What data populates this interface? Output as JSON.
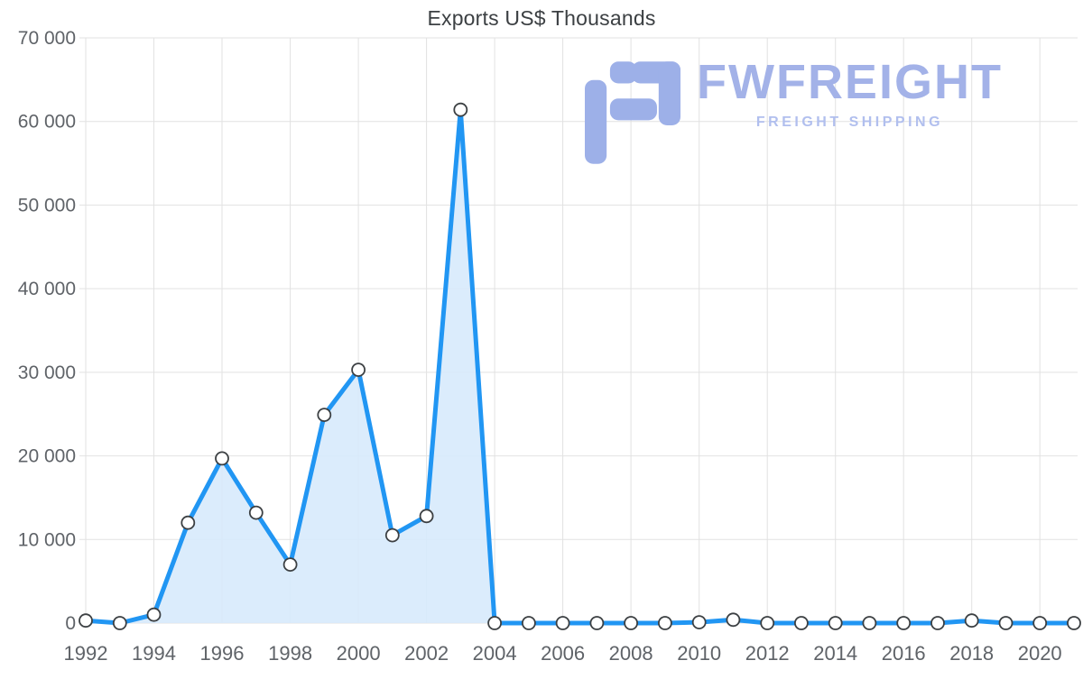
{
  "title": "Exports US$ Thousands",
  "watermark": {
    "brand": "FWFREIGHT",
    "tagline": "FREIGHT SHIPPING",
    "color": "#a3b2e8"
  },
  "chart_data": {
    "type": "area",
    "title": "Exports US$ Thousands",
    "xlabel": "",
    "ylabel": "",
    "x": [
      1992,
      1993,
      1994,
      1995,
      1996,
      1997,
      1998,
      1999,
      2000,
      2001,
      2002,
      2003,
      2004,
      2005,
      2006,
      2007,
      2008,
      2009,
      2010,
      2011,
      2012,
      2013,
      2014,
      2015,
      2016,
      2017,
      2018,
      2019,
      2020,
      2021
    ],
    "series": [
      {
        "name": "Exports US$ Thousands",
        "values": [
          300,
          0,
          1000,
          12000,
          19700,
          13200,
          7000,
          24900,
          30300,
          10500,
          12800,
          61400,
          0,
          0,
          0,
          0,
          0,
          0,
          100,
          400,
          0,
          0,
          0,
          0,
          0,
          0,
          300,
          0,
          0,
          0
        ]
      }
    ],
    "ylim": [
      0,
      70000
    ],
    "yticks": [
      0,
      10000,
      20000,
      30000,
      40000,
      50000,
      60000,
      70000
    ],
    "ytick_labels": [
      "0",
      "10 000",
      "20 000",
      "30 000",
      "40 000",
      "50 000",
      "60 000",
      "70 000"
    ],
    "xticks": [
      1992,
      1994,
      1996,
      1998,
      2000,
      2002,
      2004,
      2006,
      2008,
      2010,
      2012,
      2014,
      2016,
      2018,
      2020
    ],
    "xtick_labels": [
      "1992",
      "1994",
      "1996",
      "1998",
      "2000",
      "2002",
      "2004",
      "2006",
      "2008",
      "2010",
      "2012",
      "2014",
      "2016",
      "2018",
      "2020"
    ],
    "grid": true,
    "legend": "none",
    "colors": {
      "line": "#2196f3",
      "area_fill": "#d7eafc",
      "marker_fill": "#ffffff",
      "marker_stroke": "#3c4043",
      "grid": "#e2e2e2",
      "tick_text": "#5f6368",
      "title_text": "#3c4043"
    }
  }
}
